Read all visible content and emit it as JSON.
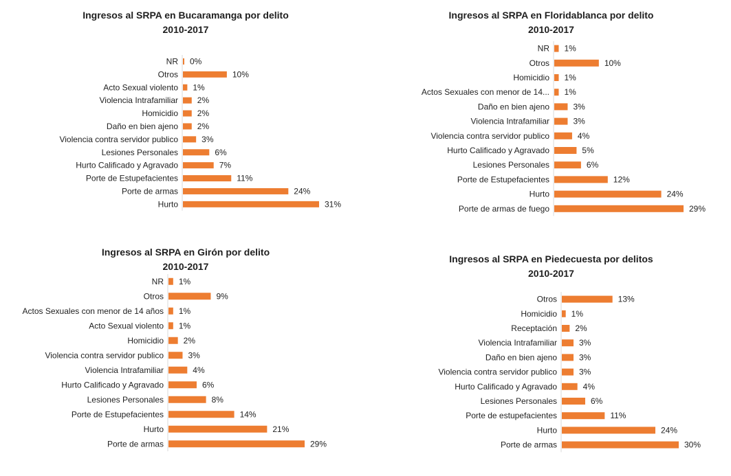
{
  "colors": {
    "bar": "#ed7d31",
    "axis": "#d9d9d9"
  },
  "chart_data": [
    {
      "type": "bar",
      "orientation": "horizontal",
      "title": "Ingresos al SRPA en Bucaramanga por delito",
      "subtitle": "2010-2017",
      "categories": [
        "NR",
        "Otros",
        "Acto Sexual violento",
        "Violencia Intrafamiliar",
        "Homicidio",
        "Daño en bien ajeno",
        "Violencia contra servidor publico",
        "Lesiones Personales",
        "Hurto Calificado y Agravado",
        "Porte de Estupefacientes",
        "Porte de armas",
        "Hurto"
      ],
      "values": [
        0,
        10,
        1,
        2,
        2,
        2,
        3,
        6,
        7,
        11,
        24,
        31
      ],
      "labels": [
        "0%",
        "10%",
        "1%",
        "2%",
        "2%",
        "2%",
        "3%",
        "6%",
        "7%",
        "11%",
        "24%",
        "31%"
      ],
      "unit": "%"
    },
    {
      "type": "bar",
      "orientation": "horizontal",
      "title": "Ingresos al SRPA en Floridablanca por delito",
      "subtitle": "2010-2017",
      "categories": [
        "NR",
        "Otros",
        "Homicidio",
        "Actos Sexuales con menor de 14...",
        "Daño en bien ajeno",
        "Violencia Intrafamiliar",
        "Violencia contra servidor publico",
        "Hurto Calificado y Agravado",
        "Lesiones Personales",
        "Porte de Estupefacientes",
        "Hurto",
        "Porte de armas de fuego"
      ],
      "values": [
        1,
        10,
        1,
        1,
        3,
        3,
        4,
        5,
        6,
        12,
        24,
        29
      ],
      "labels": [
        "1%",
        "10%",
        "1%",
        "1%",
        "3%",
        "3%",
        "4%",
        "5%",
        "6%",
        "12%",
        "24%",
        "29%"
      ],
      "unit": "%"
    },
    {
      "type": "bar",
      "orientation": "horizontal",
      "title": "Ingresos al SRPA en Girón por delito",
      "subtitle": "2010-2017",
      "categories": [
        "NR",
        "Otros",
        "Actos Sexuales con menor de 14 años",
        "Acto Sexual violento",
        "Homicidio",
        "Violencia contra servidor publico",
        "Violencia Intrafamiliar",
        "Hurto Calificado y Agravado",
        "Lesiones Personales",
        "Porte de Estupefacientes",
        "Hurto",
        "Porte de armas"
      ],
      "values": [
        1,
        9,
        1,
        1,
        2,
        3,
        4,
        6,
        8,
        14,
        21,
        29
      ],
      "labels": [
        "1%",
        "9%",
        "1%",
        "1%",
        "2%",
        "3%",
        "4%",
        "6%",
        "8%",
        "14%",
        "21%",
        "29%"
      ],
      "unit": "%"
    },
    {
      "type": "bar",
      "orientation": "horizontal",
      "title": "Ingresos al SRPA en Piedecuesta por delitos",
      "subtitle": "2010-2017",
      "categories": [
        "Otros",
        "Homicidio",
        "Receptación",
        "Violencia Intrafamiliar",
        "Daño en bien ajeno",
        "Violencia contra servidor publico",
        "Hurto Calificado y Agravado",
        "Lesiones Personales",
        "Porte de estupefacientes",
        "Hurto",
        "Porte de armas"
      ],
      "values": [
        13,
        1,
        2,
        3,
        3,
        3,
        4,
        6,
        11,
        24,
        30
      ],
      "labels": [
        "13%",
        "1%",
        "2%",
        "3%",
        "3%",
        "3%",
        "4%",
        "6%",
        "11%",
        "24%",
        "30%"
      ],
      "unit": "%"
    }
  ]
}
